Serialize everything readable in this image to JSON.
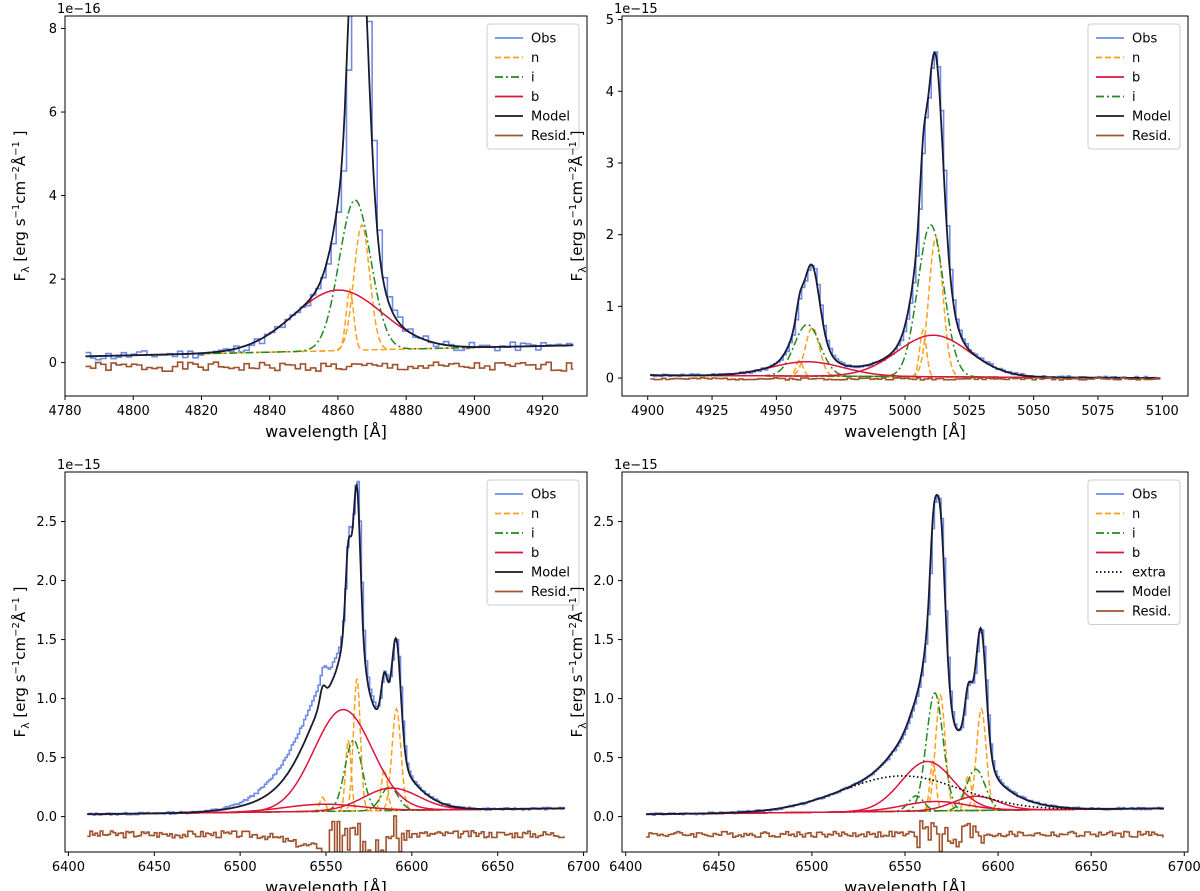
{
  "figure": {
    "background": "#ffffff"
  },
  "colors": {
    "Obs": "#6b8be6",
    "n": "#ff9f1c",
    "i": "#1f8a1f",
    "b": "#dc143c",
    "extra": "#000000",
    "Model": "#1a1a2e",
    "Resid.": "#a0522d"
  },
  "chart_data": [
    {
      "type": "line",
      "panel": "top-left",
      "xlabel": "wavelength [Å]",
      "ylabel": "F_λ [erg s^-1 cm^-2 Å^-1]",
      "ylabel_parts": {
        "main": "F",
        "sub": "λ",
        "p1": "[erg s",
        "e1": "−1",
        "p2": "cm",
        "e2": "−2",
        "p3": "Å",
        "e3": "−1",
        "p4": "]"
      },
      "scale_label": "1e−16",
      "xlim": [
        4780,
        4933
      ],
      "ylim": [
        -0.8,
        8.3
      ],
      "xticks": [
        4780,
        4800,
        4820,
        4840,
        4860,
        4880,
        4900,
        4920
      ],
      "yticks": [
        0,
        2,
        4,
        6,
        8
      ],
      "x_range": [
        4786,
        4929
      ],
      "continuum": {
        "a": 0.15,
        "x0": 4786,
        "slope": 0.00185
      },
      "legend_position": "top-right",
      "legend": [
        "Obs",
        "n",
        "i",
        "b",
        "Model",
        "Resid."
      ],
      "components": [
        {
          "name": "n",
          "style": "dashed",
          "center": 4863.5,
          "amp": 1.45,
          "sigma": 1.1
        },
        {
          "name": "n",
          "style": "dashed",
          "center": 4867,
          "amp": 3.0,
          "sigma": 2.3
        },
        {
          "name": "i",
          "style": "dashdot",
          "center": 4865,
          "amp": 3.6,
          "sigma": 4.6
        },
        {
          "name": "b",
          "style": "solid",
          "center": 4860,
          "amp": 1.45,
          "sigma": 13
        }
      ],
      "model_extra": [
        {
          "center": 4866,
          "amp": 3.0,
          "sigma": 2.2
        }
      ],
      "residual": {
        "offset": -0.1,
        "amp": 0.22,
        "step": 1.5,
        "seed": 1
      },
      "obs": {
        "step": 1.5,
        "noise": 0.22,
        "seed": 11
      }
    },
    {
      "type": "line",
      "panel": "top-right",
      "xlabel": "wavelength [Å]",
      "ylabel": "F_λ [erg s^-1 cm^-2 Å^-1]",
      "ylabel_parts": {
        "main": "F",
        "sub": "λ",
        "p1": "[erg s",
        "e1": "−1",
        "p2": "cm",
        "e2": "−2",
        "p3": "Å",
        "e3": "−1",
        "p4": "]"
      },
      "scale_label": "1e−15",
      "xlim": [
        4890,
        5110
      ],
      "ylim": [
        -0.25,
        5.05
      ],
      "xticks": [
        4900,
        4925,
        4950,
        4975,
        5000,
        5025,
        5050,
        5075,
        5100
      ],
      "yticks": [
        0,
        1,
        2,
        3,
        4,
        5
      ],
      "x_range": [
        4901,
        5099
      ],
      "continuum": {
        "a": 0.04,
        "x0": 4901,
        "slope": -0.0002
      },
      "legend_position": "top-right",
      "legend": [
        "Obs",
        "n",
        "b",
        "i",
        "Model",
        "Resid."
      ],
      "components": [
        {
          "name": "n",
          "style": "dashed",
          "center": 4959,
          "amp": 0.22,
          "sigma": 1.3
        },
        {
          "name": "n",
          "style": "dashed",
          "center": 4964,
          "amp": 0.68,
          "sigma": 2.7
        },
        {
          "name": "n",
          "style": "dashed",
          "center": 5007,
          "amp": 0.65,
          "sigma": 1.3
        },
        {
          "name": "n",
          "style": "dashed",
          "center": 5012,
          "amp": 1.95,
          "sigma": 2.7
        },
        {
          "name": "i",
          "style": "dashdot",
          "center": 4962,
          "amp": 0.72,
          "sigma": 5
        },
        {
          "name": "i",
          "style": "dashdot",
          "center": 5010,
          "amp": 2.12,
          "sigma": 5
        },
        {
          "name": "b",
          "style": "solid",
          "center": 4962,
          "amp": 0.2,
          "sigma": 14
        },
        {
          "name": "b",
          "style": "solid",
          "center": 5011,
          "amp": 0.58,
          "sigma": 14
        }
      ],
      "model_extra": [],
      "residual": {
        "offset": -0.01,
        "amp": 0.03,
        "step": 1.5,
        "seed": 2
      },
      "obs": {
        "step": 1.2,
        "noise": 0.04,
        "seed": 12
      }
    },
    {
      "type": "line",
      "panel": "bottom-left",
      "xlabel": "wavelength [Å]",
      "ylabel": "F_λ [erg s^-1 cm^-2 Å^-1]",
      "ylabel_parts": {
        "main": "F",
        "sub": "λ",
        "p1": "[erg s",
        "e1": "−1",
        "p2": "cm",
        "e2": "−2",
        "p3": "Å",
        "e3": "−1",
        "p4": "]"
      },
      "scale_label": "1e−15",
      "xlim": [
        6398,
        6702
      ],
      "ylim": [
        -0.3,
        2.92
      ],
      "xticks": [
        6400,
        6450,
        6500,
        6550,
        6600,
        6650,
        6700
      ],
      "yticks": [
        0.0,
        0.5,
        1.0,
        1.5,
        2.0,
        2.5
      ],
      "x_range": [
        6411,
        6689
      ],
      "continuum": {
        "a": 0.02,
        "x0": 6411,
        "slope": 0.00018
      },
      "legend_position": "top-right",
      "legend": [
        "Obs",
        "n",
        "i",
        "b",
        "Model",
        "Resid."
      ],
      "components": [
        {
          "name": "n",
          "style": "dashed",
          "center": 6548,
          "amp": 0.12,
          "sigma": 1.6
        },
        {
          "name": "n",
          "style": "dashed",
          "center": 6563,
          "amp": 0.6,
          "sigma": 1.6
        },
        {
          "name": "n",
          "style": "dashed",
          "center": 6568,
          "amp": 1.12,
          "sigma": 2.0
        },
        {
          "name": "n",
          "style": "dashed",
          "center": 6584,
          "amp": 0.35,
          "sigma": 1.8
        },
        {
          "name": "n",
          "style": "dashed",
          "center": 6591,
          "amp": 0.86,
          "sigma": 2.6
        },
        {
          "name": "i",
          "style": "dashdot",
          "center": 6566,
          "amp": 0.6,
          "sigma": 5
        },
        {
          "name": "i",
          "style": "dashdot",
          "center": 6587,
          "amp": 0.2,
          "sigma": 5
        },
        {
          "name": "b",
          "style": "solid",
          "center": 6560,
          "amp": 0.86,
          "sigma": 17
        },
        {
          "name": "b",
          "style": "solid",
          "center": 6548,
          "amp": 0.06,
          "sigma": 22
        },
        {
          "name": "b",
          "style": "solid",
          "center": 6588,
          "amp": 0.19,
          "sigma": 16
        }
      ],
      "model_extra": [
        {
          "center": 6552,
          "amp": 0.2,
          "sigma": 30
        }
      ],
      "obs_excess": [
        {
          "center": 6538,
          "amp": 0.2,
          "sigma": 20
        }
      ],
      "residual": {
        "offset": -0.15,
        "amp": 0.06,
        "step": 1.5,
        "seed": 3,
        "dip": {
          "center": 6542,
          "amp": -0.1,
          "sigma": 14
        },
        "spikes": {
          "from": 6546,
          "to": 6596,
          "amp": 0.18
        }
      },
      "obs": {
        "step": 1.2,
        "noise": 0.02,
        "seed": 13
      }
    },
    {
      "type": "line",
      "panel": "bottom-right",
      "xlabel": "wavelength [Å]",
      "ylabel": "F_λ [erg s^-1 cm^-2 Å^-1]",
      "ylabel_parts": {
        "main": "F",
        "sub": "λ",
        "p1": "[erg s",
        "e1": "−1",
        "p2": "cm",
        "e2": "−2",
        "p3": "Å",
        "e3": "−1",
        "p4": "]"
      },
      "scale_label": "1e−15",
      "xlim": [
        6398,
        6702
      ],
      "ylim": [
        -0.3,
        2.92
      ],
      "xticks": [
        6400,
        6450,
        6500,
        6550,
        6600,
        6650,
        6700
      ],
      "yticks": [
        0.0,
        0.5,
        1.0,
        1.5,
        2.0,
        2.5
      ],
      "x_range": [
        6411,
        6689
      ],
      "continuum": {
        "a": 0.02,
        "x0": 6411,
        "slope": 0.00018
      },
      "legend_position": "top-right",
      "legend": [
        "Obs",
        "n",
        "i",
        "b",
        "extra",
        "Model",
        "Resid."
      ],
      "components": [
        {
          "name": "n",
          "style": "dashed",
          "center": 6565,
          "amp": 0.42,
          "sigma": 1.6
        },
        {
          "name": "n",
          "style": "dashed",
          "center": 6569,
          "amp": 0.98,
          "sigma": 2.6
        },
        {
          "name": "n",
          "style": "dashed",
          "center": 6584,
          "amp": 0.3,
          "sigma": 1.8
        },
        {
          "name": "n",
          "style": "dashed",
          "center": 6591,
          "amp": 0.86,
          "sigma": 2.6
        },
        {
          "name": "i",
          "style": "dashdot",
          "center": 6566,
          "amp": 1.0,
          "sigma": 4.5
        },
        {
          "name": "i",
          "style": "dashdot",
          "center": 6588,
          "amp": 0.35,
          "sigma": 5
        },
        {
          "name": "i",
          "style": "dashdot",
          "center": 6556,
          "amp": 0.13,
          "sigma": 4
        },
        {
          "name": "b",
          "style": "solid",
          "center": 6562,
          "amp": 0.42,
          "sigma": 14
        },
        {
          "name": "b",
          "style": "solid",
          "center": 6566,
          "amp": 0.08,
          "sigma": 17
        },
        {
          "name": "b",
          "style": "solid",
          "center": 6588,
          "amp": 0.12,
          "sigma": 12
        },
        {
          "name": "extra",
          "style": "dotted",
          "center": 6548,
          "amp": 0.3,
          "sigma": 32
        }
      ],
      "model_extra": [
        {
          "center": 6595,
          "amp": 0.07,
          "sigma": 20
        }
      ],
      "residual": {
        "offset": -0.15,
        "amp": 0.05,
        "step": 1.5,
        "seed": 4,
        "spikes": {
          "from": 6556,
          "to": 6592,
          "amp": 0.13
        }
      },
      "obs": {
        "step": 1.2,
        "noise": 0.02,
        "seed": 14
      }
    }
  ]
}
